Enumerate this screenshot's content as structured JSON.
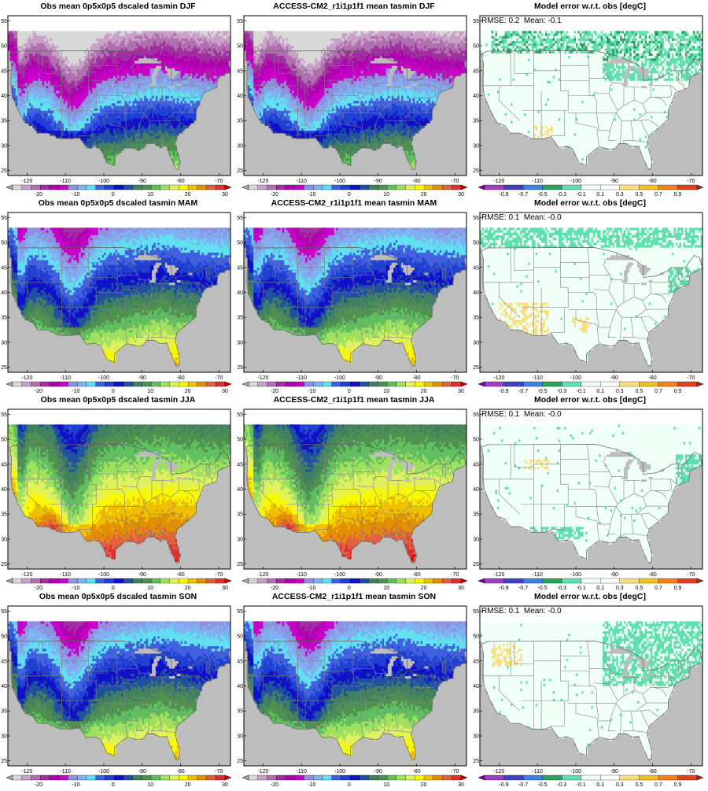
{
  "rows": [
    {
      "season": "DJF",
      "obs_title": "Obs mean 0p5x0p5 dscaled tasmin DJF",
      "model_title": "ACCESS-CM2_r1i1p1f1 mean tasmin DJF",
      "error_title": "Model error w.r.t. obs [degC]",
      "stats": "RMSE: 0.2  Mean: -0.1"
    },
    {
      "season": "MAM",
      "obs_title": "Obs mean 0p5x0p5 dscaled tasmin MAM",
      "model_title": "ACCESS-CM2_r1i1p1f1 mean tasmin MAM",
      "error_title": "Model error w.r.t. obs [degC]",
      "stats": "RMSE: 0.1  Mean: -0.0"
    },
    {
      "season": "JJA",
      "obs_title": "Obs mean 0p5x0p5 dscaled tasmin JJA",
      "model_title": "ACCESS-CM2_r1i1p1f1 mean tasmin JJA",
      "error_title": "Model error w.r.t. obs [degC]",
      "stats": "RMSE: 0.1  Mean: -0.0"
    },
    {
      "season": "SON",
      "obs_title": "Obs mean 0p5x0p5 dscaled tasmin SON",
      "model_title": "ACCESS-CM2_r1i1p1f1 mean tasmin SON",
      "error_title": "Model error w.r.t. obs [degC]",
      "stats": "RMSE: 0.1  Mean: -0.0"
    }
  ],
  "axes": {
    "lon_ticks": [
      "-120",
      "-110",
      "-100",
      "-90",
      "-80",
      "-70"
    ],
    "lat_ticks": [
      "25",
      "30",
      "35",
      "40",
      "45",
      "50",
      "55"
    ]
  },
  "colorbars": {
    "temperature": {
      "labels": [
        "-20",
        "-10",
        "0",
        "10",
        "20",
        "30"
      ],
      "colors": [
        "#aaaaaa",
        "#d8d8d8",
        "#c8a0c8",
        "#b070b0",
        "#a030a0",
        "#b000b0",
        "#c800c8",
        "#9090e0",
        "#80b0f0",
        "#60e0f0",
        "#4060e0",
        "#2040d0",
        "#1010c8",
        "#2050a0",
        "#408060",
        "#509050",
        "#60c060",
        "#a0e060",
        "#e0f060",
        "#f8f800",
        "#f0c000",
        "#e09000",
        "#e06040",
        "#e03030",
        "#d00000"
      ]
    },
    "error": {
      "labels": [
        "-0.9",
        "-0.7",
        "-0.5",
        "-0.3",
        "-0.1",
        "0.1",
        "0.3",
        "0.5",
        "0.7",
        "0.9"
      ],
      "colors": [
        "#8000a0",
        "#a040c0",
        "#4040c0",
        "#4080e0",
        "#30a060",
        "#60e0b0",
        "#f0fff8",
        "#ffffff",
        "#f8e080",
        "#f0c020",
        "#f08020",
        "#e04020",
        "#a03010"
      ]
    }
  },
  "colors": {
    "ocean": "#ffffff",
    "land_mask": "#bdbdbd",
    "state_lines": "#808080"
  }
}
